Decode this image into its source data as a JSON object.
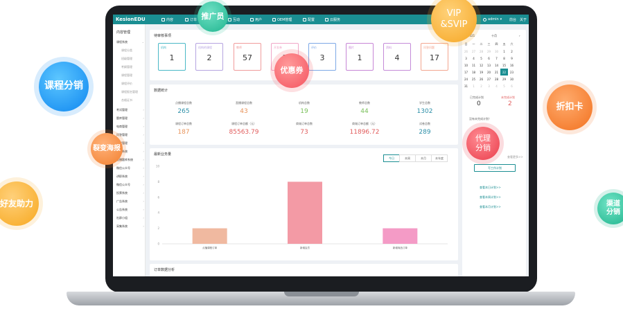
{
  "app": {
    "logo": "KesionEDU",
    "user": "admin",
    "top_links": [
      "前台",
      "关于"
    ]
  },
  "nav": [
    "内容",
    "订单",
    "推广员",
    "互动",
    "用户",
    "OEM管理",
    "配置",
    "云服务"
  ],
  "sidebar": {
    "title": "内容管理",
    "first": "课程系统",
    "subs": [
      "课程分类",
      "班级管理",
      "考纲管理",
      "课程管理",
      "课程评价",
      "课程报名管理",
      "合格证书"
    ],
    "items": [
      "考试管理",
      "题库管理",
      "电商管理",
      "问答管理",
      "教学管理",
      "词库系统",
      "直播题库系统",
      "微信公众号",
      "讲职系统",
      "微信公众号",
      "投票系统",
      "广告系统",
      "公告系统",
      "社群小组",
      "采集系统"
    ]
  },
  "pending": {
    "title": "待审核事项",
    "items": [
      {
        "label": "机构",
        "value": "1",
        "color": "#49b8c6"
      },
      {
        "label": "机构的课程",
        "value": "2",
        "color": "#b5a3e0"
      },
      {
        "label": "教师",
        "value": "57",
        "color": "#f09b9b"
      },
      {
        "label": "开发券",
        "value": "3",
        "color": "#f0a6c8"
      },
      {
        "label": "评价",
        "value": "3",
        "color": "#7ca8e6"
      },
      {
        "label": "图片",
        "value": "1",
        "color": "#c785d6"
      },
      {
        "label": "资料",
        "value": "4",
        "color": "#c48ad8"
      },
      {
        "label": "问答问题",
        "value": "17",
        "color": "#f3a58f"
      }
    ]
  },
  "stats": {
    "title": "数据统计",
    "cells": [
      {
        "label": "点播课程总数",
        "value": "265",
        "color": "#2d8fa8"
      },
      {
        "label": "直播课程总数",
        "value": "43",
        "color": "#e8935a"
      },
      {
        "label": "机构总数",
        "value": "19",
        "color": "#7ac05a"
      },
      {
        "label": "教师总数",
        "value": "44",
        "color": "#7ac05a"
      },
      {
        "label": "学生总数",
        "value": "1302",
        "color": "#2d8fa8"
      },
      {
        "label": "课程订单总数",
        "value": "187",
        "color": "#e8935a"
      },
      {
        "label": "课程订单总额（元）",
        "value": "85563.79",
        "color": "#e15c5c"
      },
      {
        "label": "商城订单总数",
        "value": "73",
        "color": "#e15c5c"
      },
      {
        "label": "商城订单总额（元）",
        "value": "11896.72",
        "color": "#e15c5c"
      },
      {
        "label": "试卷总数",
        "value": "289",
        "color": "#2d8fa8"
      }
    ]
  },
  "business": {
    "title": "最新业务量",
    "tabs": [
      "今日",
      "本周",
      "本月",
      "本年度"
    ],
    "active_tab": "今日"
  },
  "chart_data": {
    "type": "bar",
    "title": "最新业务量",
    "categories": [
      "点播课程订单",
      "新增会员",
      "新增商品订单"
    ],
    "values": [
      2,
      8,
      2
    ],
    "colors": [
      "#f0b9a0",
      "#f39aa5",
      "#f49bc6"
    ],
    "ylim": [
      0,
      10
    ],
    "yticks": [
      0,
      2,
      4,
      6,
      8,
      10
    ],
    "grid": false
  },
  "order_analysis": {
    "title": "订单数据分析"
  },
  "right_panel": {
    "month": "十月",
    "year_label": "2021",
    "weekdays": [
      "日",
      "一",
      "二",
      "三",
      "四",
      "五",
      "六"
    ],
    "weeks": [
      [
        "26",
        "27",
        "28",
        "29",
        "30",
        "1",
        "2"
      ],
      [
        "3",
        "4",
        "5",
        "6",
        "7",
        "8",
        "9"
      ],
      [
        "10",
        "11",
        "12",
        "13",
        "14",
        "15",
        "16"
      ],
      [
        "17",
        "18",
        "19",
        "20",
        "21",
        "22",
        "23"
      ],
      [
        "24",
        "25",
        "26",
        "27",
        "28",
        "29",
        "30"
      ],
      [
        "31",
        "1",
        "2",
        "3",
        "4",
        "5",
        "6"
      ]
    ],
    "today": "22",
    "done_label": "已完成计划",
    "done_value": "0",
    "undone_label": "未完成计划",
    "undone_value": "2",
    "no_plan": "没有未完成计划！",
    "more": "查看更多>>",
    "write_plan": "写工作计划",
    "links": [
      "查看本日计划>>",
      "查看本周计划>>",
      "查看本月计划>>"
    ]
  },
  "badges": {
    "tuiguang": "推广员",
    "vip": "VIP&SVIP",
    "course": "课程分销",
    "coupon": "优惠券",
    "discount": "折扣卡",
    "fission": "裂变海报",
    "agent": "代理分销",
    "friend": "好友助力",
    "channel": "渠道分销"
  },
  "badge_lines": {
    "vip": [
      "VIP",
      "&SVIP"
    ],
    "agent": [
      "代理",
      "分销"
    ],
    "channel": [
      "渠道",
      "分销"
    ]
  }
}
